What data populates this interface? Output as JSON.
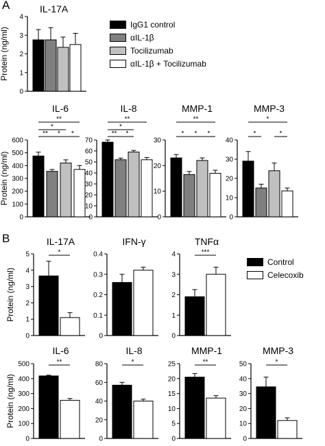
{
  "panel_labels": [
    "A",
    "B"
  ],
  "legend_a": [
    {
      "label": "IgG1 control",
      "color": "#000000"
    },
    {
      "label": "αIL-1β",
      "color": "#808080"
    },
    {
      "label": "Tocilizumab",
      "color": "#c0c0c0"
    },
    {
      "label": "αIL-1β + Tocilizumab",
      "color": "#ffffff"
    }
  ],
  "legend_b": [
    {
      "label": "Control",
      "color": "#000000"
    },
    {
      "label": "Celecoxib",
      "color": "#ffffff"
    }
  ],
  "chart_data": [
    {
      "type": "bar",
      "panel": "A",
      "title": "IL-17A",
      "ylabel": "Protein (ng/ml)",
      "ylim": [
        0,
        4
      ],
      "yticks": [
        0,
        1,
        2,
        3,
        4
      ],
      "series": [
        {
          "name": "IgG1 control",
          "values": [
            2.75
          ],
          "errors": [
            0.55
          ]
        },
        {
          "name": "αIL-1β",
          "values": [
            2.75
          ],
          "errors": [
            0.65
          ]
        },
        {
          "name": "Tocilizumab",
          "values": [
            2.35
          ],
          "errors": [
            0.55
          ]
        },
        {
          "name": "αIL-1β + Tocilizumab",
          "values": [
            2.5
          ],
          "errors": [
            0.6
          ]
        }
      ],
      "significance": []
    },
    {
      "type": "bar",
      "panel": "A",
      "title": "IL-6",
      "ylabel": "Protein (ng/ml)",
      "ylim": [
        0,
        600
      ],
      "yticks": [
        0,
        100,
        200,
        300,
        400,
        500,
        600
      ],
      "series": [
        {
          "name": "IgG1 control",
          "values": [
            475
          ],
          "errors": [
            30
          ]
        },
        {
          "name": "αIL-1β",
          "values": [
            355
          ],
          "errors": [
            15
          ]
        },
        {
          "name": "Tocilizumab",
          "values": [
            420
          ],
          "errors": [
            25
          ]
        },
        {
          "name": "αIL-1β + Tocilizumab",
          "values": [
            370
          ],
          "errors": [
            30
          ]
        }
      ],
      "significance": [
        {
          "from": 0,
          "to": 3,
          "label": "**"
        },
        {
          "from": 0,
          "to": 2,
          "label": "*"
        },
        {
          "from": 0,
          "to": 1,
          "label": "**"
        },
        {
          "from": 1,
          "to": 2,
          "label": "*"
        },
        {
          "from": 2,
          "to": 3,
          "label": "*"
        }
      ]
    },
    {
      "type": "bar",
      "panel": "A",
      "title": "IL-8",
      "ylabel": "",
      "ylim": [
        0,
        70
      ],
      "yticks": [
        0,
        10,
        20,
        30,
        40,
        50,
        60,
        70
      ],
      "series": [
        {
          "name": "IgG1 control",
          "values": [
            68
          ],
          "errors": [
            2
          ]
        },
        {
          "name": "αIL-1β",
          "values": [
            52
          ],
          "errors": [
            1.5
          ]
        },
        {
          "name": "Tocilizumab",
          "values": [
            59
          ],
          "errors": [
            1.5
          ]
        },
        {
          "name": "αIL-1β + Tocilizumab",
          "values": [
            52
          ],
          "errors": [
            2
          ]
        }
      ],
      "significance": [
        {
          "from": 0,
          "to": 3,
          "label": "**"
        },
        {
          "from": 0,
          "to": 2,
          "label": "*"
        },
        {
          "from": 0,
          "to": 1,
          "label": "**"
        },
        {
          "from": 1,
          "to": 2,
          "label": "*"
        }
      ]
    },
    {
      "type": "bar",
      "panel": "A",
      "title": "MMP-1",
      "ylabel": "",
      "ylim": [
        0,
        30
      ],
      "yticks": [
        0,
        10,
        20,
        30
      ],
      "series": [
        {
          "name": "IgG1 control",
          "values": [
            23
          ],
          "errors": [
            1.3
          ]
        },
        {
          "name": "αIL-1β",
          "values": [
            16.5
          ],
          "errors": [
            1.2
          ]
        },
        {
          "name": "Tocilizumab",
          "values": [
            22
          ],
          "errors": [
            1
          ]
        },
        {
          "name": "αIL-1β + Tocilizumab",
          "values": [
            17
          ],
          "errors": [
            1.2
          ]
        }
      ],
      "significance": [
        {
          "from": 0,
          "to": 3,
          "label": "**"
        },
        {
          "from": 0,
          "to": 1,
          "label": "*"
        },
        {
          "from": 1,
          "to": 2,
          "label": "*"
        },
        {
          "from": 2,
          "to": 3,
          "label": "*"
        }
      ]
    },
    {
      "type": "bar",
      "panel": "A",
      "title": "MMP-3",
      "ylabel": "",
      "ylim": [
        0,
        40
      ],
      "yticks": [
        0,
        10,
        20,
        30,
        40
      ],
      "series": [
        {
          "name": "IgG1 control",
          "values": [
            29
          ],
          "errors": [
            5
          ]
        },
        {
          "name": "αIL-1β",
          "values": [
            15
          ],
          "errors": [
            2
          ]
        },
        {
          "name": "Tocilizumab",
          "values": [
            24
          ],
          "errors": [
            4
          ]
        },
        {
          "name": "αIL-1β + Tocilizumab",
          "values": [
            13.5
          ],
          "errors": [
            1.5
          ]
        }
      ],
      "significance": [
        {
          "from": 0,
          "to": 3,
          "label": "*"
        },
        {
          "from": 0,
          "to": 1,
          "label": "*"
        },
        {
          "from": 2,
          "to": 3,
          "label": "*"
        }
      ]
    },
    {
      "type": "bar",
      "panel": "B",
      "title": "IL-17A",
      "ylabel": "Protein (ng/ml)",
      "ylim": [
        0,
        5
      ],
      "yticks": [
        0,
        1,
        2,
        3,
        4,
        5
      ],
      "series": [
        {
          "name": "Control",
          "values": [
            3.65
          ],
          "errors": [
            0.9
          ]
        },
        {
          "name": "Celecoxib",
          "values": [
            1.1
          ],
          "errors": [
            0.3
          ]
        }
      ],
      "significance": [
        {
          "from": 0,
          "to": 1,
          "label": "*"
        }
      ]
    },
    {
      "type": "bar",
      "panel": "B",
      "title": "IFN-γ",
      "ylabel": "",
      "ylim": [
        0,
        0.4
      ],
      "yticks": [
        0,
        0.1,
        0.2,
        0.3,
        0.4
      ],
      "series": [
        {
          "name": "Control",
          "values": [
            0.26
          ],
          "errors": [
            0.04
          ]
        },
        {
          "name": "Celecoxib",
          "values": [
            0.32
          ],
          "errors": [
            0.015
          ]
        }
      ],
      "significance": []
    },
    {
      "type": "bar",
      "panel": "B",
      "title": "TNFα",
      "ylabel": "",
      "ylim": [
        0,
        4
      ],
      "yticks": [
        0,
        1,
        2,
        3,
        4
      ],
      "series": [
        {
          "name": "Control",
          "values": [
            1.9
          ],
          "errors": [
            0.35
          ]
        },
        {
          "name": "Celecoxib",
          "values": [
            3.0
          ],
          "errors": [
            0.35
          ]
        }
      ],
      "significance": [
        {
          "from": 0,
          "to": 1,
          "label": "***"
        }
      ]
    },
    {
      "type": "bar",
      "panel": "B",
      "title": "IL-6",
      "ylabel": "Protein (ng/ml)",
      "ylim": [
        0,
        500
      ],
      "yticks": [
        0,
        100,
        200,
        300,
        400,
        500
      ],
      "series": [
        {
          "name": "Control",
          "values": [
            418
          ],
          "errors": [
            5
          ]
        },
        {
          "name": "Celecoxib",
          "values": [
            255
          ],
          "errors": [
            12
          ]
        }
      ],
      "significance": [
        {
          "from": 0,
          "to": 1,
          "label": "**"
        }
      ]
    },
    {
      "type": "bar",
      "panel": "B",
      "title": "IL-8",
      "ylabel": "",
      "ylim": [
        0,
        80
      ],
      "yticks": [
        0,
        20,
        40,
        60,
        80
      ],
      "series": [
        {
          "name": "Control",
          "values": [
            57
          ],
          "errors": [
            3
          ]
        },
        {
          "name": "Celecoxib",
          "values": [
            40
          ],
          "errors": [
            2
          ]
        }
      ],
      "significance": [
        {
          "from": 0,
          "to": 1,
          "label": "*"
        }
      ]
    },
    {
      "type": "bar",
      "panel": "B",
      "title": "MMP-1",
      "ylabel": "",
      "ylim": [
        0,
        25
      ],
      "yticks": [
        0,
        5,
        10,
        15,
        20,
        25
      ],
      "series": [
        {
          "name": "Control",
          "values": [
            20.5
          ],
          "errors": [
            1.2
          ]
        },
        {
          "name": "Celecoxib",
          "values": [
            13.5
          ],
          "errors": [
            0.8
          ]
        }
      ],
      "significance": [
        {
          "from": 0,
          "to": 1,
          "label": "**"
        }
      ]
    },
    {
      "type": "bar",
      "panel": "B",
      "title": "MMP-3",
      "ylabel": "",
      "ylim": [
        0,
        50
      ],
      "yticks": [
        0,
        10,
        20,
        30,
        40,
        50
      ],
      "series": [
        {
          "name": "Control",
          "values": [
            34.5
          ],
          "errors": [
            6.5
          ]
        },
        {
          "name": "Celecoxib",
          "values": [
            12
          ],
          "errors": [
            1.8
          ]
        }
      ],
      "significance": [
        {
          "from": 0,
          "to": 1,
          "label": "*"
        }
      ]
    }
  ]
}
